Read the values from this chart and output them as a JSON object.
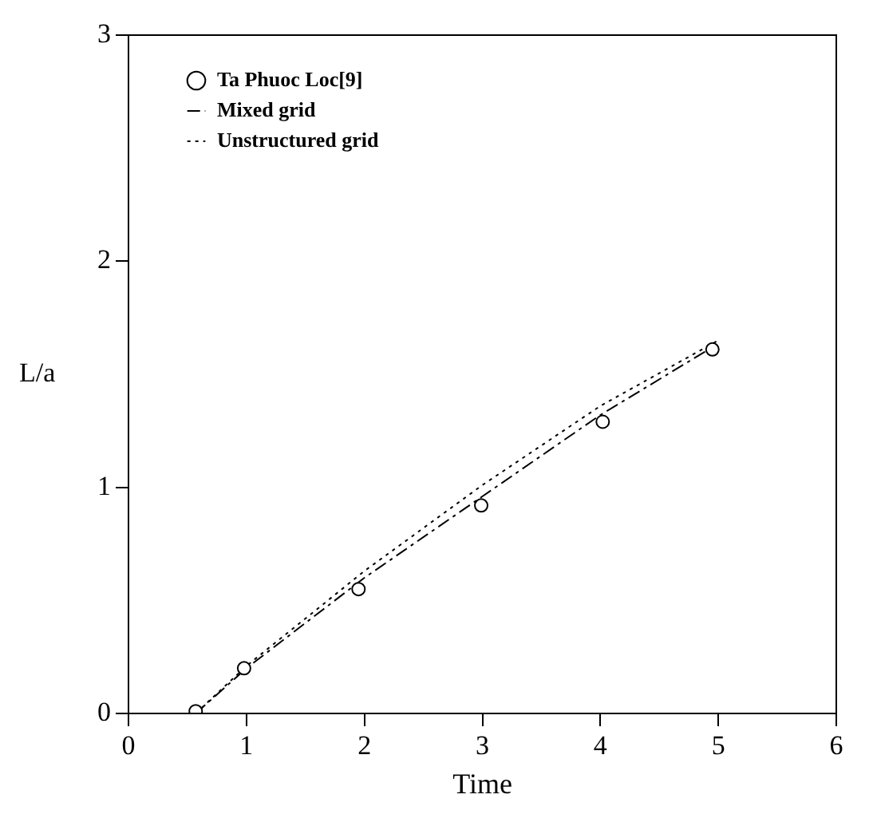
{
  "chart_data": {
    "type": "line",
    "xlabel": "Time",
    "ylabel": "L/a",
    "xlim": [
      0,
      6
    ],
    "ylim": [
      0,
      3
    ],
    "xticks": [
      0,
      1,
      2,
      3,
      4,
      5,
      6
    ],
    "yticks": [
      0,
      1,
      2,
      3
    ],
    "grid": false,
    "legend": "top left",
    "series": [
      {
        "name": "Ta Phuoc Loc[9]",
        "type": "scatter",
        "marker": "circle",
        "color": "#000000",
        "x": [
          0.57,
          0.98,
          1.95,
          2.99,
          4.02,
          4.95
        ],
        "values": [
          0.01,
          0.2,
          0.55,
          0.92,
          1.29,
          1.61
        ]
      },
      {
        "name": "Mixed grid",
        "type": "line",
        "line_style": "dashed",
        "marker": "none",
        "color": "#000000",
        "x": [
          0.57,
          1,
          2,
          3,
          4,
          4.95
        ],
        "values": [
          0.0,
          0.2,
          0.6,
          0.96,
          1.32,
          1.62
        ]
      },
      {
        "name": "Unstructured grid",
        "type": "line",
        "line_style": "dotted",
        "marker": "none",
        "color": "#000000",
        "x": [
          0.57,
          1,
          2,
          3,
          4,
          5
        ],
        "values": [
          0.0,
          0.21,
          0.63,
          1.01,
          1.36,
          1.65
        ]
      }
    ]
  }
}
